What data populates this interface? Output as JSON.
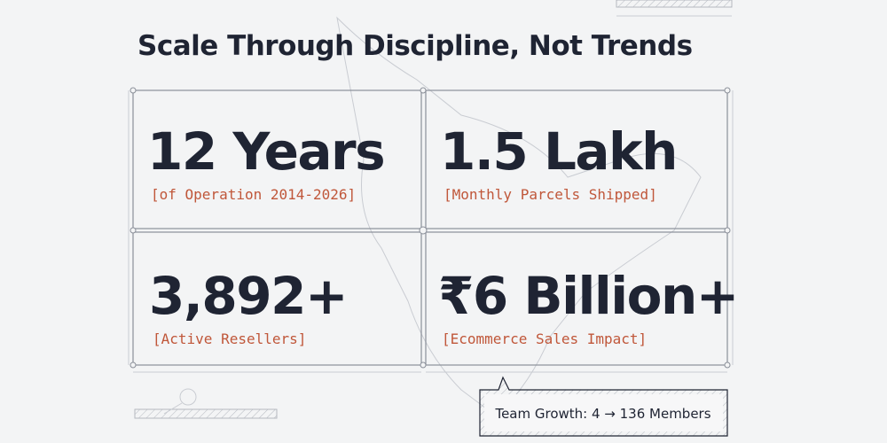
{
  "header": {
    "title": "Scale Through Discipline, Not Trends"
  },
  "stats": [
    {
      "value": "12 Years",
      "label": "[of Operation 2014-2026]"
    },
    {
      "value": "1.5 Lakh",
      "label": "[Monthly Parcels Shipped]"
    },
    {
      "value": "3,892+",
      "label": "[Active Resellers]"
    },
    {
      "value": "₹6 Billion+",
      "label": "[Ecommerce Sales Impact]"
    }
  ],
  "badge": {
    "text": "Team Growth: 4 → 136 Members"
  }
}
